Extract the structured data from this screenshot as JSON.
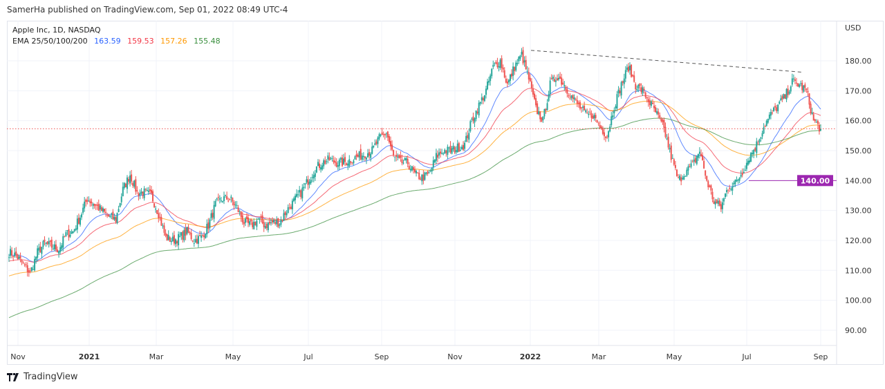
{
  "publish_line": "SamerHa published on TradingView.com, Sep 01, 2022 08:49 UTC-4",
  "legend": {
    "symbol": "Apple Inc, 1D, NASDAQ",
    "indicator": "EMA 25/50/100/200",
    "values": [
      "163.59",
      "159.53",
      "157.26",
      "155.48"
    ]
  },
  "colors": {
    "up": "#26a69a",
    "down": "#ef5350",
    "ema25": "#2962ff",
    "ema50": "#f23645",
    "ema100": "#ff9800",
    "ema200": "#388e3c",
    "hline": "#9c27b0"
  },
  "footer": {
    "brand": "TradingView"
  },
  "chart_data": {
    "type": "candlestick",
    "currency_label": "USD",
    "y_ticks": [
      "180.00",
      "170.00",
      "160.00",
      "150.00",
      "140.00",
      "130.00",
      "120.00",
      "110.00",
      "100.00",
      "90.00"
    ],
    "ylim": [
      87,
      184
    ],
    "x_ticks": [
      {
        "label": "Nov",
        "bold": false
      },
      {
        "label": "2021",
        "bold": true
      },
      {
        "label": "Mar",
        "bold": false
      },
      {
        "label": "May",
        "bold": false
      },
      {
        "label": "Jul",
        "bold": false
      },
      {
        "label": "Sep",
        "bold": false
      },
      {
        "label": "Nov",
        "bold": false
      },
      {
        "label": "2022",
        "bold": true
      },
      {
        "label": "Mar",
        "bold": false
      },
      {
        "label": "May",
        "bold": false
      },
      {
        "label": "Jul",
        "bold": false
      },
      {
        "label": "Sep",
        "bold": false
      }
    ],
    "weekly_closes": [
      116,
      115,
      112,
      109,
      116,
      119,
      118,
      117,
      122,
      123,
      128,
      134,
      132,
      130,
      128,
      127,
      137,
      142,
      136,
      136,
      135,
      129,
      121,
      120,
      121,
      123,
      120,
      121,
      125,
      132,
      134,
      134,
      131,
      126,
      125,
      127,
      125,
      126,
      126,
      130,
      133,
      136,
      140,
      144,
      146,
      147,
      146,
      146,
      147,
      148,
      149,
      150,
      154,
      156,
      148,
      146,
      146,
      142,
      141,
      142,
      148,
      150,
      150,
      151,
      152,
      160,
      165,
      170,
      178,
      180,
      172,
      178,
      182,
      174,
      164,
      160,
      172,
      175,
      172,
      168,
      165,
      162,
      162,
      158,
      155,
      165,
      172,
      178,
      172,
      170,
      166,
      162,
      157,
      148,
      140,
      143,
      145,
      150,
      140,
      133,
      131,
      138,
      139,
      143,
      148,
      152,
      158,
      162,
      165,
      168,
      173,
      172,
      170,
      160,
      157.3
    ],
    "last_price": 157.3,
    "horizontal_line": {
      "price": 140.0,
      "label": "140.00"
    },
    "trendline": {
      "from": {
        "date": "2022-01-03",
        "price": 183.5
      },
      "to": {
        "date": "2022-08-17",
        "price": 176.2
      }
    },
    "ema_periods": [
      25,
      50,
      100,
      200
    ],
    "grid": true
  }
}
